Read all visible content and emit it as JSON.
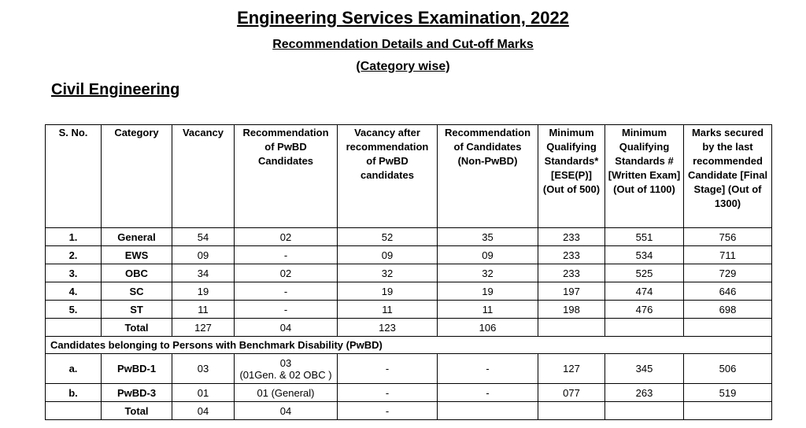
{
  "header": {
    "title": "Engineering Services Examination, 2022",
    "subtitle": "Recommendation Details and Cut-off Marks",
    "subtitle2": "(Category wise)"
  },
  "section": "Civil Engineering",
  "table": {
    "columns": [
      "S. No.",
      "Category",
      "Vacancy",
      "Recommendation of PwBD Candidates",
      "Vacancy after recommendation of PwBD candidates",
      "Recommendation of Candidates (Non-PwBD)",
      "Minimum Qualifying Standards* [ESE(P)] (Out of 500)",
      "Minimum Qualifying Standards # [Written Exam] (Out of 1100)",
      "Marks secured by the last recommended Candidate [Final Stage] (Out of 1300)"
    ],
    "rows": [
      [
        "1.",
        "General",
        "54",
        "02",
        "52",
        "35",
        "233",
        "551",
        "756"
      ],
      [
        "2.",
        "EWS",
        "09",
        "-",
        "09",
        "09",
        "233",
        "534",
        "711"
      ],
      [
        "3.",
        "OBC",
        "34",
        "02",
        "32",
        "32",
        "233",
        "525",
        "729"
      ],
      [
        "4.",
        "SC",
        "19",
        "-",
        "19",
        "19",
        "197",
        "474",
        "646"
      ],
      [
        "5.",
        "ST",
        "11",
        "-",
        "11",
        "11",
        "198",
        "476",
        "698"
      ],
      [
        null,
        "Total",
        "127",
        "04",
        "123",
        "106",
        null,
        null,
        null
      ]
    ],
    "pwbd_heading": "Candidates belonging to Persons with Benchmark Disability (PwBD)",
    "pwbd_rows": [
      [
        "a.",
        "PwBD-1",
        "03",
        [
          "03",
          "(01Gen. & 02 OBC )"
        ],
        "-",
        "-",
        "127",
        "345",
        "506"
      ],
      [
        "b.",
        "PwBD-3",
        "01",
        "01  (General)",
        "-",
        "-",
        "077",
        "263",
        "519"
      ],
      [
        null,
        "Total",
        "04",
        "04",
        "-",
        null,
        null,
        null,
        null
      ]
    ]
  }
}
